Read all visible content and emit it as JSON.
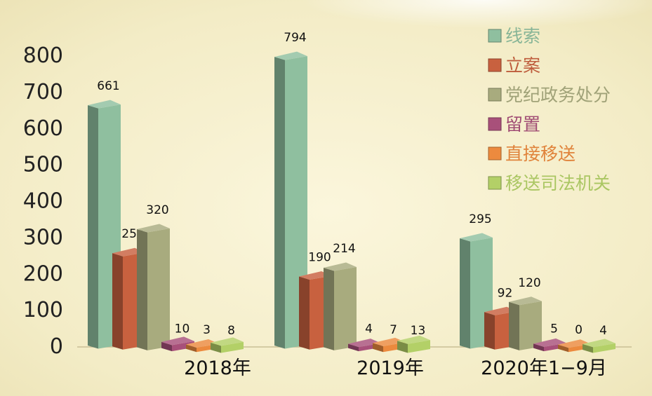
{
  "chart_data": {
    "type": "bar",
    "categories": [
      "2018年",
      "2019年",
      "2020年1−9月"
    ],
    "series": [
      {
        "name": "线索",
        "values": [
          661,
          794,
          295
        ],
        "color": "#8fbf9f"
      },
      {
        "name": "立案",
        "values": [
          254,
          190,
          92
        ],
        "color": "#c8613f"
      },
      {
        "name": "党纪政务处分",
        "values": [
          320,
          214,
          120
        ],
        "color": "#a8ab7e"
      },
      {
        "name": "留置",
        "values": [
          10,
          4,
          5
        ],
        "color": "#a8507a"
      },
      {
        "name": "直接移送",
        "values": [
          3,
          7,
          0
        ],
        "color": "#ec8a3e"
      },
      {
        "name": "移送司法机关",
        "values": [
          8,
          13,
          4
        ],
        "color": "#b3d067"
      }
    ],
    "yticks": [
      0,
      100,
      200,
      300,
      400,
      500,
      600,
      700,
      800
    ],
    "ylim": [
      0,
      800
    ],
    "legend_position": "top-right",
    "style": "3d-column"
  }
}
